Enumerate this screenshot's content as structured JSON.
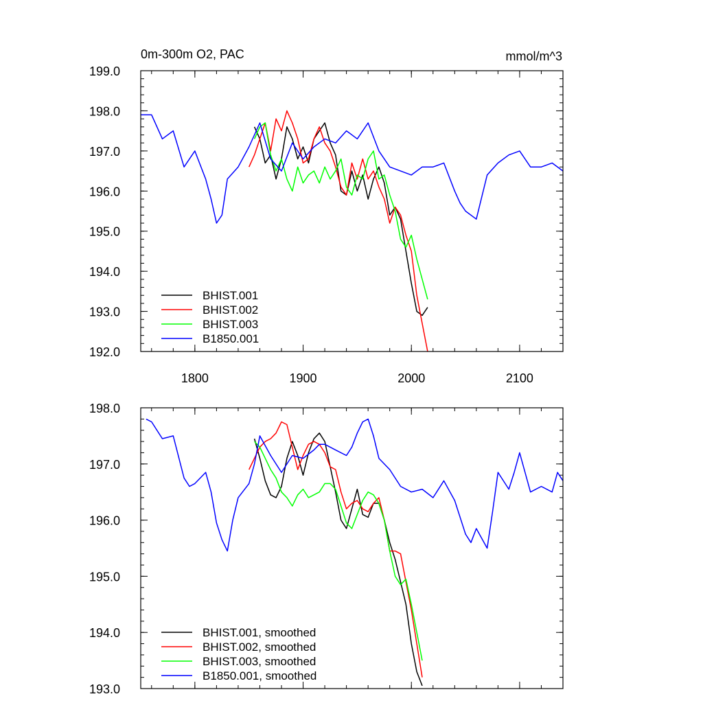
{
  "chart_data": [
    {
      "type": "line",
      "title_left": "0m-300m O2, PAC",
      "title_right": "mmol/m^3",
      "xlim": [
        1750,
        2140
      ],
      "ylim": [
        192.0,
        199.0
      ],
      "x_ticks": [
        1800,
        1900,
        2000,
        2100
      ],
      "x_tick_labels": [
        "1800",
        "1900",
        "2000",
        "2100"
      ],
      "y_ticks": [
        192,
        193,
        194,
        195,
        196,
        197,
        198,
        199
      ],
      "y_tick_labels": [
        "192.0",
        "193.0",
        "194.0",
        "195.0",
        "196.0",
        "197.0",
        "198.0",
        "199.0"
      ],
      "legend_position": "bottom-left",
      "series": [
        {
          "name": "BHIST.001",
          "color": "#000000",
          "x": [
            1855,
            1860,
            1865,
            1870,
            1875,
            1880,
            1885,
            1890,
            1895,
            1900,
            1905,
            1910,
            1915,
            1920,
            1925,
            1930,
            1935,
            1940,
            1945,
            1950,
            1955,
            1960,
            1965,
            1970,
            1975,
            1980,
            1985,
            1990,
            1995,
            2000,
            2005,
            2010,
            2015
          ],
          "values": [
            197.6,
            197.3,
            196.7,
            196.9,
            196.3,
            196.8,
            197.6,
            197.3,
            196.8,
            197.1,
            196.7,
            197.3,
            197.5,
            197.7,
            197.2,
            196.9,
            196.0,
            195.9,
            196.5,
            196.0,
            196.4,
            195.8,
            196.3,
            196.6,
            196.2,
            195.4,
            195.6,
            195.3,
            194.5,
            193.7,
            193.0,
            192.9,
            193.1
          ]
        },
        {
          "name": "BHIST.002",
          "color": "#ff0000",
          "x": [
            1850,
            1855,
            1860,
            1865,
            1870,
            1875,
            1880,
            1885,
            1890,
            1895,
            1900,
            1905,
            1910,
            1915,
            1920,
            1925,
            1930,
            1935,
            1940,
            1945,
            1950,
            1955,
            1960,
            1965,
            1970,
            1975,
            1980,
            1985,
            1990,
            1995,
            2000,
            2005,
            2010,
            2015
          ],
          "values": [
            196.6,
            196.9,
            197.3,
            197.7,
            197.0,
            197.8,
            197.5,
            198.0,
            197.7,
            197.3,
            196.7,
            196.8,
            197.3,
            197.6,
            197.2,
            197.0,
            196.6,
            196.1,
            195.9,
            196.7,
            196.3,
            196.8,
            196.3,
            196.5,
            196.1,
            195.8,
            195.2,
            195.6,
            195.4,
            194.9,
            194.5,
            193.4,
            192.7,
            192.0
          ]
        },
        {
          "name": "BHIST.003",
          "color": "#00ff00",
          "x": [
            1855,
            1860,
            1865,
            1870,
            1875,
            1880,
            1885,
            1890,
            1895,
            1900,
            1905,
            1910,
            1915,
            1920,
            1925,
            1930,
            1935,
            1940,
            1945,
            1950,
            1955,
            1960,
            1965,
            1970,
            1975,
            1980,
            1985,
            1990,
            1995,
            2000,
            2005,
            2010,
            2015
          ],
          "values": [
            197.3,
            197.6,
            197.7,
            196.9,
            196.5,
            196.8,
            196.3,
            196.0,
            196.6,
            196.2,
            196.4,
            196.5,
            196.2,
            196.6,
            196.3,
            196.5,
            196.8,
            196.1,
            195.9,
            196.4,
            196.3,
            196.8,
            197.0,
            196.3,
            196.4,
            195.9,
            195.5,
            194.8,
            194.6,
            194.9,
            194.3,
            193.8,
            193.3
          ]
        },
        {
          "name": "B1850.001",
          "color": "#0000ff",
          "x": [
            1750,
            1760,
            1770,
            1780,
            1790,
            1800,
            1810,
            1815,
            1820,
            1825,
            1830,
            1840,
            1850,
            1860,
            1870,
            1880,
            1890,
            1900,
            1910,
            1920,
            1930,
            1940,
            1950,
            1960,
            1970,
            1980,
            1990,
            2000,
            2010,
            2020,
            2030,
            2040,
            2045,
            2050,
            2060,
            2070,
            2080,
            2090,
            2100,
            2110,
            2120,
            2130,
            2140
          ],
          "values": [
            197.9,
            197.9,
            197.3,
            197.5,
            196.6,
            197.0,
            196.3,
            195.8,
            195.2,
            195.4,
            196.3,
            196.6,
            197.1,
            197.7,
            196.8,
            196.5,
            197.2,
            196.8,
            197.1,
            197.3,
            197.2,
            197.5,
            197.3,
            197.7,
            197.0,
            196.6,
            196.5,
            196.4,
            196.6,
            196.6,
            196.7,
            196.0,
            195.7,
            195.5,
            195.3,
            196.4,
            196.7,
            196.9,
            197.0,
            196.6,
            196.6,
            196.7,
            196.5
          ]
        }
      ]
    },
    {
      "type": "line",
      "xlim": [
        1750,
        2140
      ],
      "ylim": [
        193.0,
        198.0
      ],
      "x_ticks": [
        1800,
        1900,
        2000,
        2100
      ],
      "y_ticks": [
        193,
        194,
        195,
        196,
        197,
        198
      ],
      "y_tick_labels": [
        "193.0",
        "194.0",
        "195.0",
        "196.0",
        "197.0",
        "198.0"
      ],
      "legend_position": "bottom-left",
      "series": [
        {
          "name": "BHIST.001, smoothed",
          "color": "#000000",
          "x": [
            1855,
            1860,
            1865,
            1870,
            1875,
            1880,
            1885,
            1890,
            1895,
            1900,
            1905,
            1910,
            1915,
            1920,
            1925,
            1930,
            1935,
            1940,
            1945,
            1950,
            1955,
            1960,
            1965,
            1970,
            1975,
            1980,
            1985,
            1990,
            1995,
            2000,
            2005,
            2010
          ],
          "values": [
            197.45,
            197.1,
            196.7,
            196.45,
            196.4,
            196.6,
            197.1,
            197.4,
            197.15,
            196.8,
            197.2,
            197.45,
            197.55,
            197.4,
            196.95,
            196.5,
            196.0,
            195.85,
            196.2,
            196.55,
            196.1,
            196.05,
            196.3,
            196.3,
            196.0,
            195.6,
            195.3,
            194.9,
            194.5,
            193.8,
            193.3,
            193.05
          ]
        },
        {
          "name": "BHIST.002, smoothed",
          "color": "#ff0000",
          "x": [
            1850,
            1855,
            1860,
            1865,
            1870,
            1875,
            1880,
            1885,
            1890,
            1895,
            1900,
            1905,
            1910,
            1915,
            1920,
            1925,
            1930,
            1935,
            1940,
            1945,
            1950,
            1955,
            1960,
            1965,
            1970,
            1975,
            1980,
            1985,
            1990,
            1995,
            2000,
            2005,
            2010
          ],
          "values": [
            196.9,
            197.1,
            197.3,
            197.4,
            197.45,
            197.55,
            197.75,
            197.7,
            197.3,
            196.9,
            197.15,
            197.35,
            197.4,
            197.35,
            197.2,
            196.95,
            196.9,
            196.5,
            196.2,
            196.3,
            196.35,
            196.2,
            196.15,
            196.3,
            196.4,
            196.0,
            195.45,
            195.45,
            195.4,
            194.9,
            194.4,
            193.8,
            193.2
          ]
        },
        {
          "name": "BHIST.003, smoothed",
          "color": "#00ff00",
          "x": [
            1855,
            1860,
            1865,
            1870,
            1875,
            1880,
            1885,
            1890,
            1895,
            1900,
            1905,
            1910,
            1915,
            1920,
            1925,
            1930,
            1935,
            1940,
            1945,
            1950,
            1955,
            1960,
            1965,
            1970,
            1975,
            1980,
            1985,
            1990,
            1995,
            2000,
            2005,
            2010
          ],
          "values": [
            197.4,
            197.3,
            197.1,
            196.9,
            196.75,
            196.5,
            196.4,
            196.25,
            196.45,
            196.55,
            196.4,
            196.45,
            196.5,
            196.65,
            196.65,
            196.55,
            196.25,
            195.95,
            195.85,
            196.1,
            196.35,
            196.5,
            196.45,
            196.3,
            196.0,
            195.45,
            195.0,
            194.85,
            194.95,
            194.5,
            194.0,
            193.5
          ]
        },
        {
          "name": "B1850.001, smoothed",
          "color": "#0000ff",
          "x": [
            1755,
            1760,
            1770,
            1780,
            1790,
            1795,
            1800,
            1810,
            1815,
            1820,
            1825,
            1830,
            1835,
            1840,
            1850,
            1855,
            1860,
            1870,
            1880,
            1890,
            1900,
            1910,
            1915,
            1920,
            1930,
            1940,
            1945,
            1950,
            1955,
            1960,
            1965,
            1970,
            1980,
            1990,
            2000,
            2010,
            2020,
            2030,
            2040,
            2050,
            2055,
            2060,
            2070,
            2075,
            2080,
            2090,
            2095,
            2100,
            2110,
            2120,
            2130,
            2135,
            2140
          ],
          "values": [
            197.8,
            197.75,
            197.45,
            197.5,
            196.75,
            196.6,
            196.65,
            196.85,
            196.5,
            195.95,
            195.65,
            195.45,
            196.0,
            196.4,
            196.65,
            197.0,
            197.5,
            197.15,
            196.85,
            197.15,
            197.1,
            197.25,
            197.35,
            197.35,
            197.25,
            197.15,
            197.3,
            197.55,
            197.75,
            197.8,
            197.5,
            197.1,
            196.9,
            196.6,
            196.5,
            196.55,
            196.4,
            196.7,
            196.35,
            195.75,
            195.6,
            195.85,
            195.5,
            196.15,
            196.85,
            196.55,
            196.85,
            197.2,
            196.5,
            196.6,
            196.5,
            196.85,
            196.7
          ]
        }
      ]
    }
  ]
}
